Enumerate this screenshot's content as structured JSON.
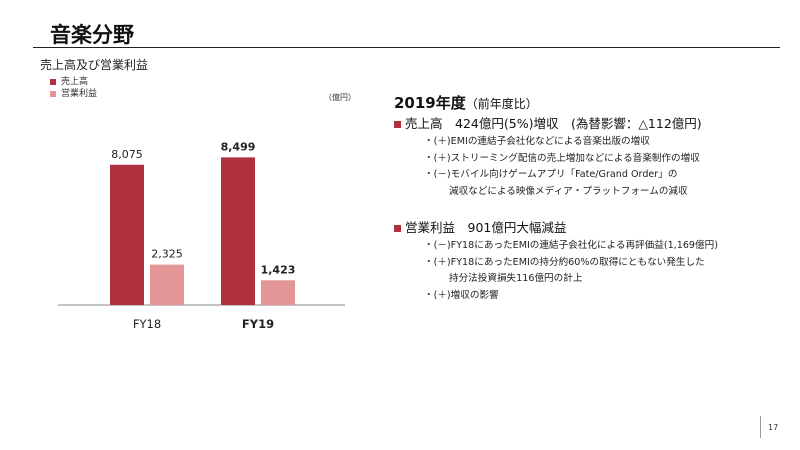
{
  "slide": {
    "title": "音楽分野",
    "page_number": "17"
  },
  "chart_data": {
    "type": "bar",
    "title": "売上高及び営業利益",
    "unit": "（億円）",
    "categories": [
      "FY18",
      "FY19"
    ],
    "series": [
      {
        "name": "売上高",
        "values": [
          8075,
          8499
        ],
        "labels": [
          "8,075",
          "8,499"
        ],
        "color": "#b0313e"
      },
      {
        "name": "営業利益",
        "values": [
          2325,
          1423
        ],
        "labels": [
          "2,325",
          "1,423"
        ],
        "color": "#e39696"
      }
    ],
    "emphasized_category": "FY19",
    "ylim": [
      0,
      9500
    ],
    "grid": false,
    "legend": "top-left"
  },
  "summary": {
    "heading": "2019年度",
    "heading_paren": "（前年度比）",
    "sections": [
      {
        "head": "売上高　424億円(5%)増収　(為替影響：△112億円)",
        "items": [
          {
            "text": "・(＋)EMIの連結子会社化などによる音楽出版の増収",
            "continuation": false
          },
          {
            "text": "・(＋)ストリーミング配信の売上増加などによる音楽制作の増収",
            "continuation": false
          },
          {
            "text": "・(－)モバイル向けゲームアプリ「Fate/Grand Order」の",
            "continuation": false
          },
          {
            "text": "減収などによる映像メディア・プラットフォームの減収",
            "continuation": true
          }
        ]
      },
      {
        "head": "営業利益　901億円大幅減益",
        "items": [
          {
            "text": "・(－)FY18にあったEMIの連結子会社化による再評価益(1,169億円)",
            "continuation": false
          },
          {
            "text": "・(＋)FY18にあったEMIの持分約60%の取得にともない発生した",
            "continuation": false
          },
          {
            "text": "持分法投資損失116億円の計上",
            "continuation": true
          },
          {
            "text": "・(＋)増収の影響",
            "continuation": false
          }
        ]
      }
    ]
  }
}
